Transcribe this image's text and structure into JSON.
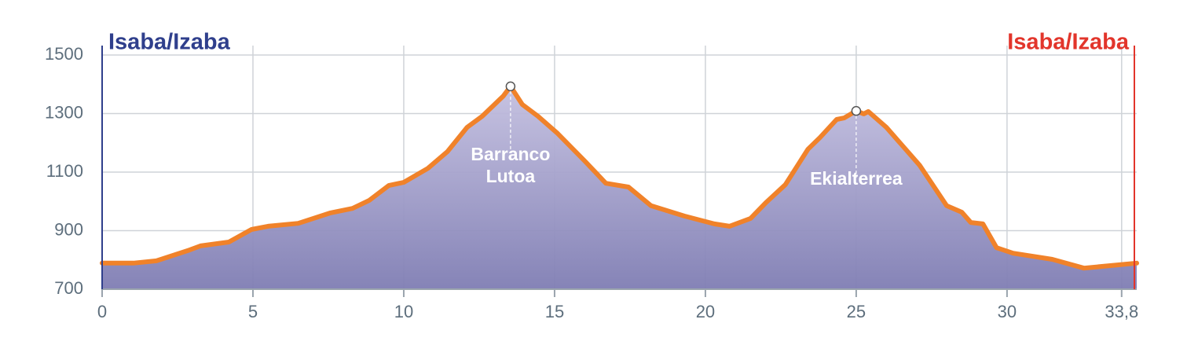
{
  "chart_data": {
    "type": "area",
    "start_label": "Isaba/Izaba",
    "start_color": "#2f3f8c",
    "end_label": "Isaba/Izaba",
    "end_color": "#e2352b",
    "x": [
      0,
      1.04,
      1.8,
      2.9,
      3.26,
      4.2,
      4.95,
      5.5,
      6.5,
      7.55,
      8.3,
      8.85,
      9.5,
      10.0,
      10.8,
      11.45,
      12.1,
      12.6,
      13.3,
      13.54,
      13.93,
      14.45,
      15.1,
      16.0,
      16.7,
      17.45,
      18.2,
      19.3,
      20.3,
      20.8,
      21.5,
      22.0,
      22.65,
      23.4,
      23.8,
      24.35,
      24.6,
      25.0,
      25.25,
      25.4,
      26.0,
      27.1,
      28.0,
      28.5,
      28.8,
      29.2,
      29.65,
      30.2,
      31.5,
      32.55,
      34.3
    ],
    "values": [
      789,
      789,
      797,
      834,
      848,
      861,
      904,
      915,
      925,
      960,
      976,
      1003,
      1054,
      1065,
      1113,
      1170,
      1253,
      1291,
      1360,
      1393,
      1331,
      1291,
      1232,
      1138,
      1062,
      1049,
      985,
      950,
      923,
      915,
      942,
      995,
      1057,
      1178,
      1218,
      1280,
      1285,
      1309,
      1299,
      1307,
      1253,
      1124,
      985,
      963,
      928,
      923,
      842,
      823,
      802,
      772,
      789
    ],
    "color": "#f0822a",
    "fill": "#9c98c6",
    "xlim": [
      0,
      34.3
    ],
    "ylim": [
      700,
      1500
    ],
    "xticks": [
      0,
      5,
      10,
      15,
      20,
      25,
      30,
      {
        "value": 33.8,
        "label": "33,8"
      }
    ],
    "yticks": [
      700,
      900,
      1100,
      1300,
      1500
    ],
    "grid": true,
    "annotations": [
      {
        "lines": [
          "Barranco",
          "Lutoa"
        ],
        "x": 13.54,
        "y": 1393
      },
      {
        "lines": [
          "Ekialterrea"
        ],
        "x": 25.0,
        "y": 1309
      }
    ]
  }
}
